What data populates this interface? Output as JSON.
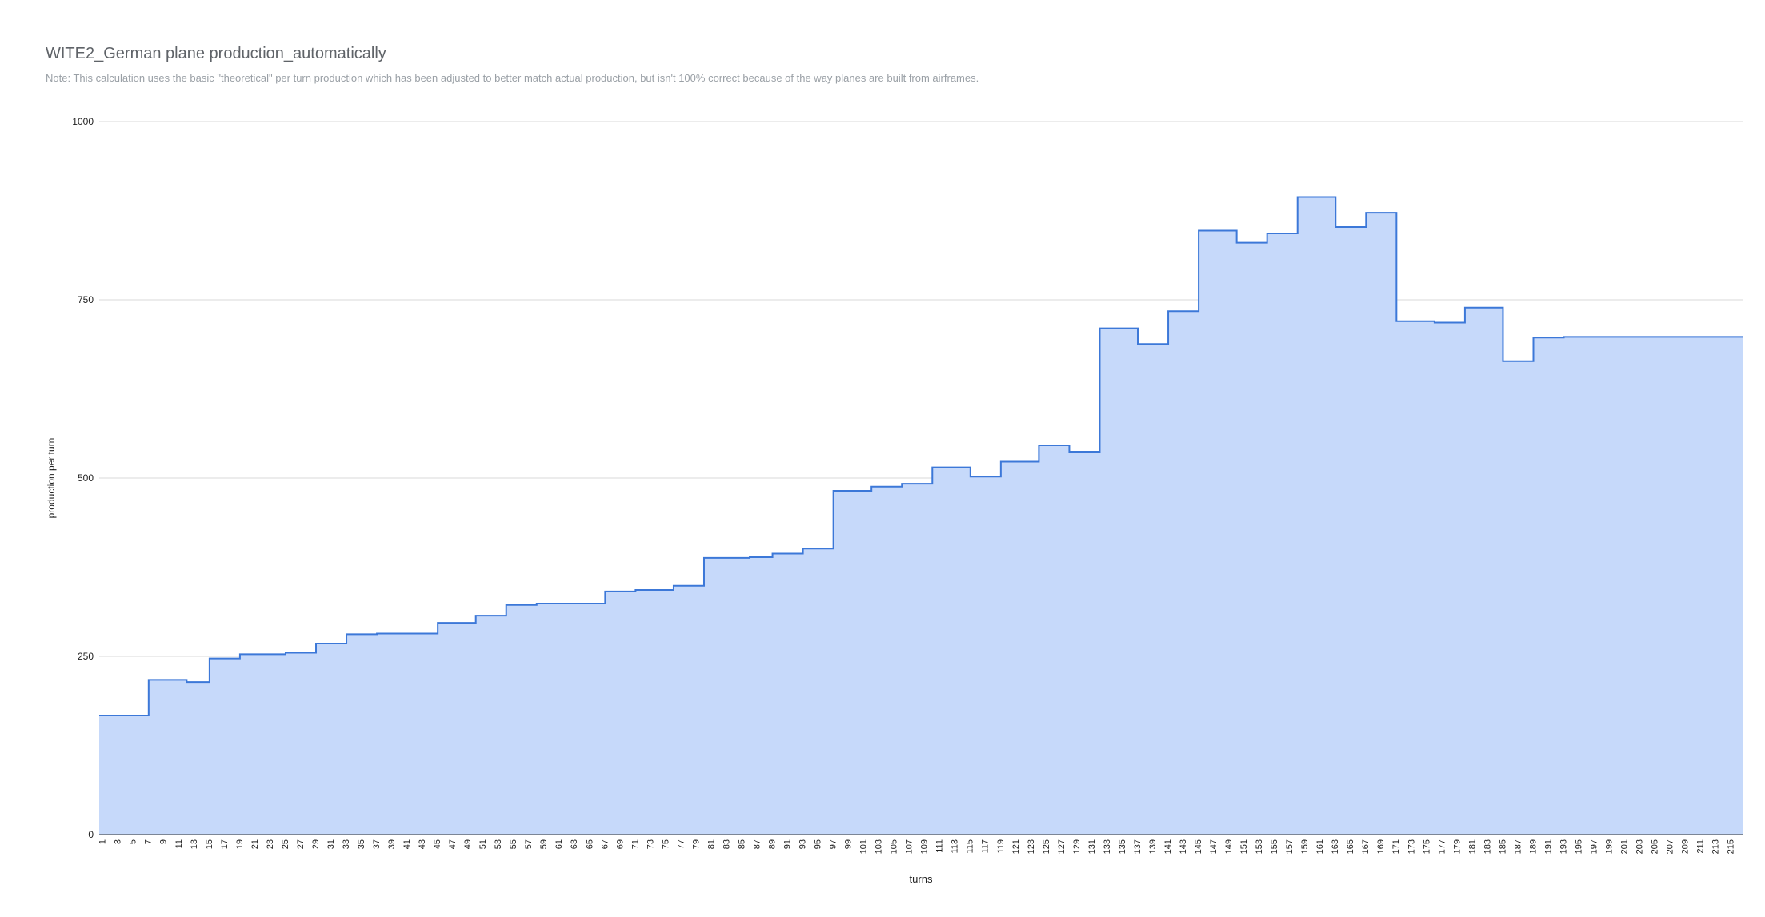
{
  "chart_data": {
    "type": "area",
    "title": "WITE2_German plane production_automatically",
    "subtitle": "Note: This calculation uses the basic \"theoretical\" per turn production which has been adjusted to better match actual production, but isn't 100% correct because of the way planes are built from airframes.",
    "xlabel": "turns",
    "ylabel": "production per turn",
    "ylim": [
      0,
      1000
    ],
    "y_ticks": [
      0,
      250,
      500,
      750,
      1000
    ],
    "x_range": [
      1,
      216
    ],
    "x_tick_labels": [
      1,
      3,
      5,
      7,
      9,
      11,
      13,
      15,
      17,
      19,
      21,
      23,
      25,
      27,
      29,
      31,
      33,
      35,
      37,
      39,
      41,
      43,
      45,
      47,
      49,
      51,
      53,
      55,
      57,
      59,
      61,
      63,
      65,
      67,
      69,
      71,
      73,
      75,
      77,
      79,
      81,
      83,
      85,
      87,
      89,
      91,
      93,
      95,
      97,
      99,
      101,
      103,
      105,
      107,
      109,
      111,
      113,
      115,
      117,
      119,
      121,
      123,
      125,
      127,
      129,
      131,
      133,
      135,
      137,
      139,
      141,
      143,
      145,
      147,
      149,
      151,
      153,
      155,
      157,
      159,
      161,
      163,
      165,
      167,
      169,
      171,
      173,
      175,
      177,
      179,
      181,
      183,
      185,
      187,
      189,
      191,
      193,
      195,
      197,
      199,
      201,
      203,
      205,
      207,
      209,
      211,
      213,
      215
    ],
    "grid": true,
    "legend": "none",
    "colors": {
      "line": "#3c78d8",
      "fill": "#c6d9fa",
      "grid": "#d9d9d9",
      "axis": "#333333"
    },
    "step_points": [
      {
        "x": 1,
        "y": 167
      },
      {
        "x": 7,
        "y": 217
      },
      {
        "x": 11,
        "y": 217
      },
      {
        "x": 12,
        "y": 214
      },
      {
        "x": 15,
        "y": 247
      },
      {
        "x": 19,
        "y": 253
      },
      {
        "x": 25,
        "y": 255
      },
      {
        "x": 29,
        "y": 268
      },
      {
        "x": 33,
        "y": 281
      },
      {
        "x": 37,
        "y": 282
      },
      {
        "x": 45,
        "y": 297
      },
      {
        "x": 50,
        "y": 307
      },
      {
        "x": 54,
        "y": 322
      },
      {
        "x": 58,
        "y": 324
      },
      {
        "x": 67,
        "y": 341
      },
      {
        "x": 71,
        "y": 343
      },
      {
        "x": 76,
        "y": 349
      },
      {
        "x": 80,
        "y": 388
      },
      {
        "x": 86,
        "y": 389
      },
      {
        "x": 89,
        "y": 394
      },
      {
        "x": 93,
        "y": 401
      },
      {
        "x": 97,
        "y": 482
      },
      {
        "x": 102,
        "y": 488
      },
      {
        "x": 106,
        "y": 492
      },
      {
        "x": 110,
        "y": 515
      },
      {
        "x": 115,
        "y": 502
      },
      {
        "x": 119,
        "y": 523
      },
      {
        "x": 124,
        "y": 546
      },
      {
        "x": 128,
        "y": 537
      },
      {
        "x": 132,
        "y": 710
      },
      {
        "x": 137,
        "y": 688
      },
      {
        "x": 141,
        "y": 734
      },
      {
        "x": 145,
        "y": 847
      },
      {
        "x": 150,
        "y": 830
      },
      {
        "x": 154,
        "y": 843
      },
      {
        "x": 158,
        "y": 894
      },
      {
        "x": 163,
        "y": 852
      },
      {
        "x": 167,
        "y": 872
      },
      {
        "x": 171,
        "y": 720
      },
      {
        "x": 176,
        "y": 718
      },
      {
        "x": 180,
        "y": 739
      },
      {
        "x": 185,
        "y": 664
      },
      {
        "x": 189,
        "y": 697
      },
      {
        "x": 193,
        "y": 698
      },
      {
        "x": 216,
        "y": 698
      }
    ]
  }
}
